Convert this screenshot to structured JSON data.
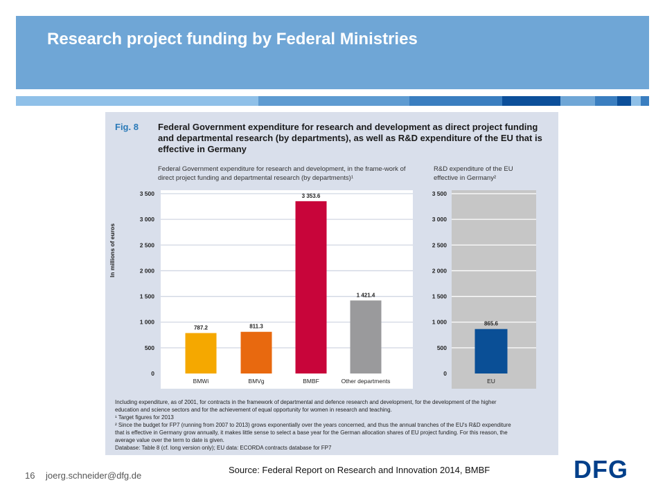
{
  "slide": {
    "title": "Research project funding by Federal Ministries",
    "page_number": "16",
    "email": "joerg.schneider@dfg.de",
    "source": "Source: Federal Report on Research and Innovation 2014, BMBF",
    "logo_text": "DFG",
    "colors": {
      "header": "#6fa6d6",
      "logo": "#003f8a",
      "stripes": [
        "#8fc0e8",
        "#5e9bd1",
        "#3a7ec0",
        "#0c4f9a",
        "#6fa6d6",
        "#3a7ec0",
        "#0c4f9a",
        "#8fc0e8",
        "#3a7ec0"
      ]
    }
  },
  "figure": {
    "label": "Fig. 8",
    "title": "Federal Government expenditure for research and development as direct project funding and departmental research (by departments), as well as R&D expenditure of the EU that is effective in Germany",
    "subtitle_left": "Federal Government expenditure for research and development, in the frame-work of direct project funding and departmental research (by departments)¹",
    "subtitle_right": "R&D expenditure of the EU effective in Germany²",
    "notes": [
      "Including expenditure, as of 2001, for contracts in the framework of departmental and defence research and development, for the development of the higher",
      "education and science sectors and for the achievement of equal opportunity for women in research and teaching.",
      "¹ Target figures for 2013",
      "² Since the budget for FP7 (running from 2007 to 2013) grows exponentially over the years concerned, and thus the annual tranches of the EU's R&D expenditure",
      "that is effective in Germany grow annually, it makes little sense to select a base year for the German allocation shares of EU project funding. For this reason, the",
      "average value over the term to date is given.",
      "Database: Table 8 (cf. long version only); EU data: ECORDA contracts database for FP7"
    ]
  },
  "chart_data": [
    {
      "type": "bar",
      "ylabel": "In millions of euros",
      "ylim": [
        0,
        3500
      ],
      "yticks": [
        0,
        500,
        1000,
        1500,
        2000,
        2500,
        3000,
        3500
      ],
      "ytick_labels": [
        "0",
        "500",
        "1 000",
        "1 500",
        "2 000",
        "2 500",
        "3 000",
        "3 500"
      ],
      "grid": true,
      "categories": [
        "BMWi",
        "BMVg",
        "BMBF",
        "Other departments"
      ],
      "values": [
        787.2,
        811.3,
        3353.6,
        1421.4
      ],
      "value_labels": [
        "787.2",
        "811.3",
        "3 353.6",
        "1 421.4"
      ],
      "colors": [
        "#f5a800",
        "#e8690f",
        "#c8053a",
        "#9a9a9c"
      ]
    },
    {
      "type": "bar",
      "ylim": [
        0,
        3500
      ],
      "yticks": [
        0,
        500,
        1000,
        1500,
        2000,
        2500,
        3000,
        3500
      ],
      "ytick_labels": [
        "0",
        "500",
        "1 000",
        "1 500",
        "2 000",
        "2 500",
        "3 000",
        "3 500"
      ],
      "grid": true,
      "categories": [
        "EU"
      ],
      "values": [
        865.6
      ],
      "value_labels": [
        "865.6"
      ],
      "colors": [
        "#0a4f96"
      ]
    }
  ]
}
